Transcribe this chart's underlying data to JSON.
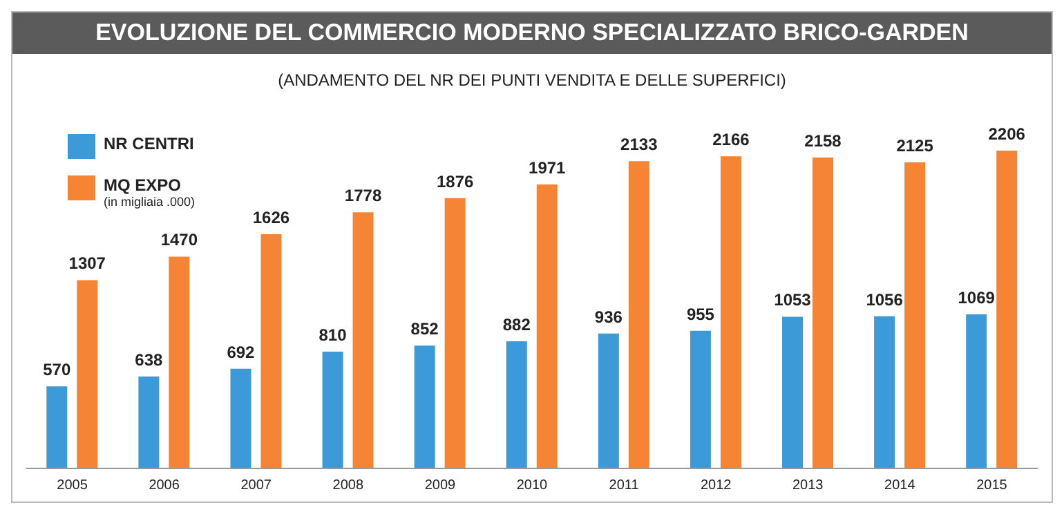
{
  "chart_data": {
    "type": "bar",
    "title": "EVOLUZIONE DEL COMMERCIO MODERNO SPECIALIZZATO BRICO-GARDEN",
    "subtitle": "(ANDAMENTO DEL NR DEI PUNTI VENDITA E DELLE SUPERFICI)",
    "categories": [
      "2005",
      "2006",
      "2007",
      "2008",
      "2009",
      "2010",
      "2011",
      "2012",
      "2013",
      "2014",
      "2015"
    ],
    "series": [
      {
        "name": "NR CENTRI",
        "color": "#3d9ad8",
        "values": [
          570,
          638,
          692,
          810,
          852,
          882,
          936,
          955,
          1053,
          1056,
          1069
        ]
      },
      {
        "name": "MQ EXPO",
        "color": "#f58435",
        "values": [
          1307,
          1470,
          1626,
          1778,
          1876,
          1971,
          2133,
          2166,
          2158,
          2125,
          2206
        ]
      }
    ],
    "annotations": [
      "(in migliaia .000)"
    ],
    "data_labels": true,
    "legend": "top left",
    "grid": false
  }
}
